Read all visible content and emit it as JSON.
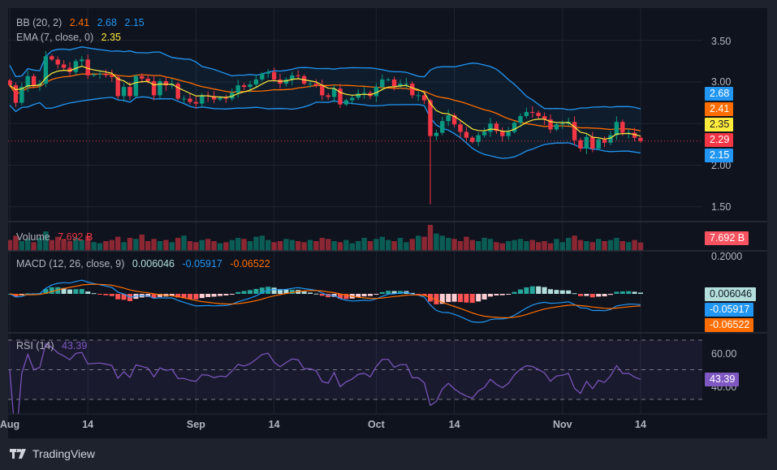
{
  "legends": {
    "bb": {
      "label": "BB (20, 2)",
      "basis": "2.41",
      "upper": "2.68",
      "lower": "2.15"
    },
    "ema": {
      "label": "EMA (7, close, 0)",
      "value": "2.35"
    },
    "volume": {
      "label": "Volume",
      "value": "7.692 B"
    },
    "macd": {
      "label": "MACD (12, 26, close, 9)",
      "hist": "0.006046",
      "macd": "-0.05917",
      "signal": "-0.06522"
    },
    "rsi": {
      "label": "RSI (14)",
      "value": "43.39"
    }
  },
  "price_axis": {
    "ticks": [
      "3.50",
      "3.00",
      "2.00",
      "1.50"
    ],
    "tick_values": [
      3.5,
      3.0,
      2.0,
      1.5
    ]
  },
  "macd_axis": {
    "ticks": [
      "0.2000"
    ]
  },
  "rsi_axis": {
    "ticks": [
      "60.00",
      "40.00"
    ]
  },
  "tags": {
    "bb_upper": "2.68",
    "bb_basis": "2.41",
    "ema": "2.35",
    "price": "2.29",
    "bb_lower": "2.15",
    "volume": "7.692 B",
    "macd_hist": "0.006046",
    "macd": "-0.05917",
    "macd_signal": "-0.06522",
    "rsi": "43.39"
  },
  "time_axis": [
    {
      "label": "Aug",
      "date": "Aug 1"
    },
    {
      "label": "14",
      "date": "Aug 14"
    },
    {
      "label": "Sep",
      "date": "Sep 1"
    },
    {
      "label": "14",
      "date": "Sep 14"
    },
    {
      "label": "Oct",
      "date": "Oct 1"
    },
    {
      "label": "14",
      "date": "Oct 14"
    },
    {
      "label": "Nov",
      "date": "Nov 1"
    },
    {
      "label": "14",
      "date": "Nov 14"
    }
  ],
  "colors": {
    "up": "#089981",
    "down": "#f23645",
    "bb_band": "#2196f3",
    "bb_basis": "#ff6d00",
    "ema": "#ffeb3b",
    "macd": "#2196f3",
    "signal": "#ff6d00",
    "rsi": "#7e57c2",
    "hist_up_strong": "#26a69a",
    "hist_up_weak": "#b2dfdb",
    "hist_down_strong": "#ff5252",
    "hist_down_weak": "#ffcdd2"
  },
  "brand": "TradingView",
  "chart_data": {
    "type": "candlestick",
    "interval": "1D",
    "start_date": "Aug 1",
    "first_open": 3.02,
    "closes": [
      2.96,
      2.75,
      2.94,
      3.07,
      2.96,
      2.98,
      3.31,
      3.27,
      3.21,
      3.17,
      3.12,
      3.25,
      3.27,
      3.08,
      3.09,
      3.1,
      3.08,
      3.06,
      2.83,
      2.94,
      2.83,
      3.07,
      3.04,
      3.01,
      2.84,
      3.01,
      2.96,
      2.98,
      2.8,
      2.8,
      2.76,
      2.74,
      2.84,
      2.83,
      2.79,
      2.81,
      2.8,
      2.87,
      2.96,
      2.94,
      2.97,
      3.03,
      3.1,
      3.12,
      3.03,
      2.98,
      3.03,
      3.08,
      3.07,
      2.98,
      2.98,
      2.96,
      2.84,
      2.82,
      2.92,
      2.73,
      2.78,
      2.81,
      2.86,
      2.87,
      2.83,
      2.94,
      3.03,
      3.03,
      2.95,
      2.98,
      2.98,
      2.84,
      2.84,
      2.78,
      2.35,
      2.39,
      2.53,
      2.6,
      2.49,
      2.4,
      2.33,
      2.28,
      2.36,
      2.4,
      2.5,
      2.41,
      2.35,
      2.4,
      2.51,
      2.59,
      2.64,
      2.63,
      2.59,
      2.55,
      2.43,
      2.49,
      2.5,
      2.52,
      2.3,
      2.2,
      2.34,
      2.2,
      2.31,
      2.27,
      2.36,
      2.52,
      2.39,
      2.39,
      2.33,
      2.29
    ],
    "low_overrides": [
      {
        "date": "Oct 10",
        "low": 1.53
      }
    ],
    "volumes_billion": [
      10,
      14,
      9,
      11,
      8,
      12,
      18,
      10,
      13,
      11,
      9,
      12,
      10,
      14,
      8,
      7,
      9,
      10,
      13,
      8,
      12,
      11,
      15,
      9,
      11,
      9,
      10,
      8,
      12,
      14,
      9,
      8,
      10,
      11,
      9,
      7,
      8,
      10,
      12,
      11,
      9,
      13,
      14,
      10,
      8,
      9,
      11,
      10,
      9,
      8,
      10,
      9,
      12,
      11,
      9,
      8,
      10,
      7,
      9,
      12,
      9,
      11,
      13,
      10,
      9,
      12,
      8,
      11,
      14,
      13,
      24,
      16,
      14,
      12,
      11,
      9,
      13,
      10,
      9,
      12,
      11,
      8,
      7,
      9,
      10,
      11,
      9,
      10,
      8,
      9,
      7,
      11,
      8,
      12,
      14,
      10,
      9,
      8,
      11,
      9,
      10,
      12,
      9,
      8,
      10,
      7.692
    ],
    "price_range": [
      1.35,
      3.72
    ],
    "rsi_levels": [
      70,
      50,
      30
    ]
  }
}
